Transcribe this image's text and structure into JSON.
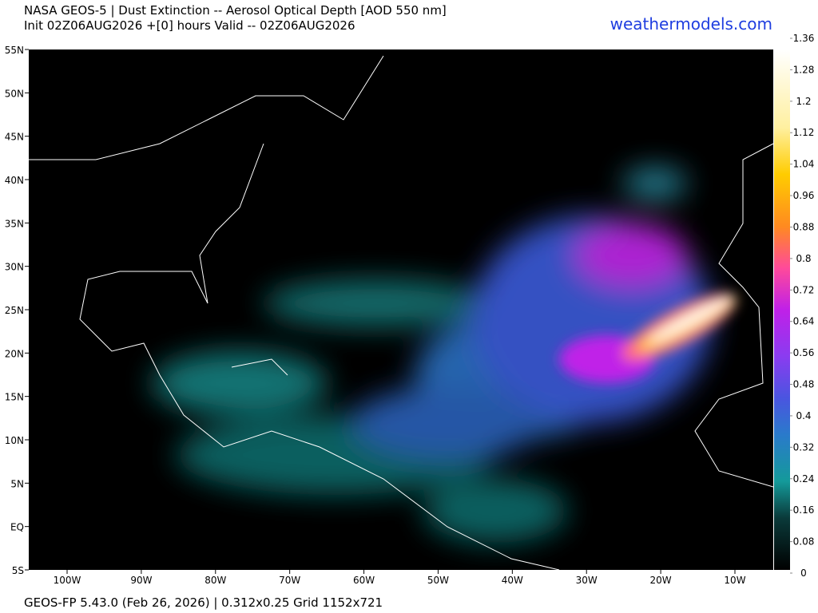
{
  "header": {
    "title_line1": "NASA GEOS-5 | Dust Extinction -- Aerosol Optical Depth [AOD 550 nm]",
    "title_line2": "Init 02Z06AUG2026 +[0] hours Valid -- 02Z06AUG2026",
    "site": "weathermodels.com"
  },
  "map": {
    "lat_labels": [
      "55N",
      "50N",
      "45N",
      "40N",
      "35N",
      "30N",
      "25N",
      "20N",
      "15N",
      "10N",
      "5N",
      "EQ",
      "5S"
    ],
    "lon_labels": [
      "100W",
      "90W",
      "80W",
      "70W",
      "60W",
      "50W",
      "40W",
      "30W",
      "20W",
      "10W"
    ]
  },
  "colorbar": {
    "ticks": [
      0,
      0.08,
      0.16,
      0.24,
      0.32,
      0.4,
      0.48,
      0.56,
      0.64,
      0.72,
      0.8,
      0.88,
      0.96,
      1.04,
      1.12,
      1.2,
      1.28,
      1.36
    ]
  },
  "footer": {
    "text": "GEOS-FP 5.43.0 (Feb 26, 2026) | 0.312x0.25 Grid 1152x721"
  }
}
